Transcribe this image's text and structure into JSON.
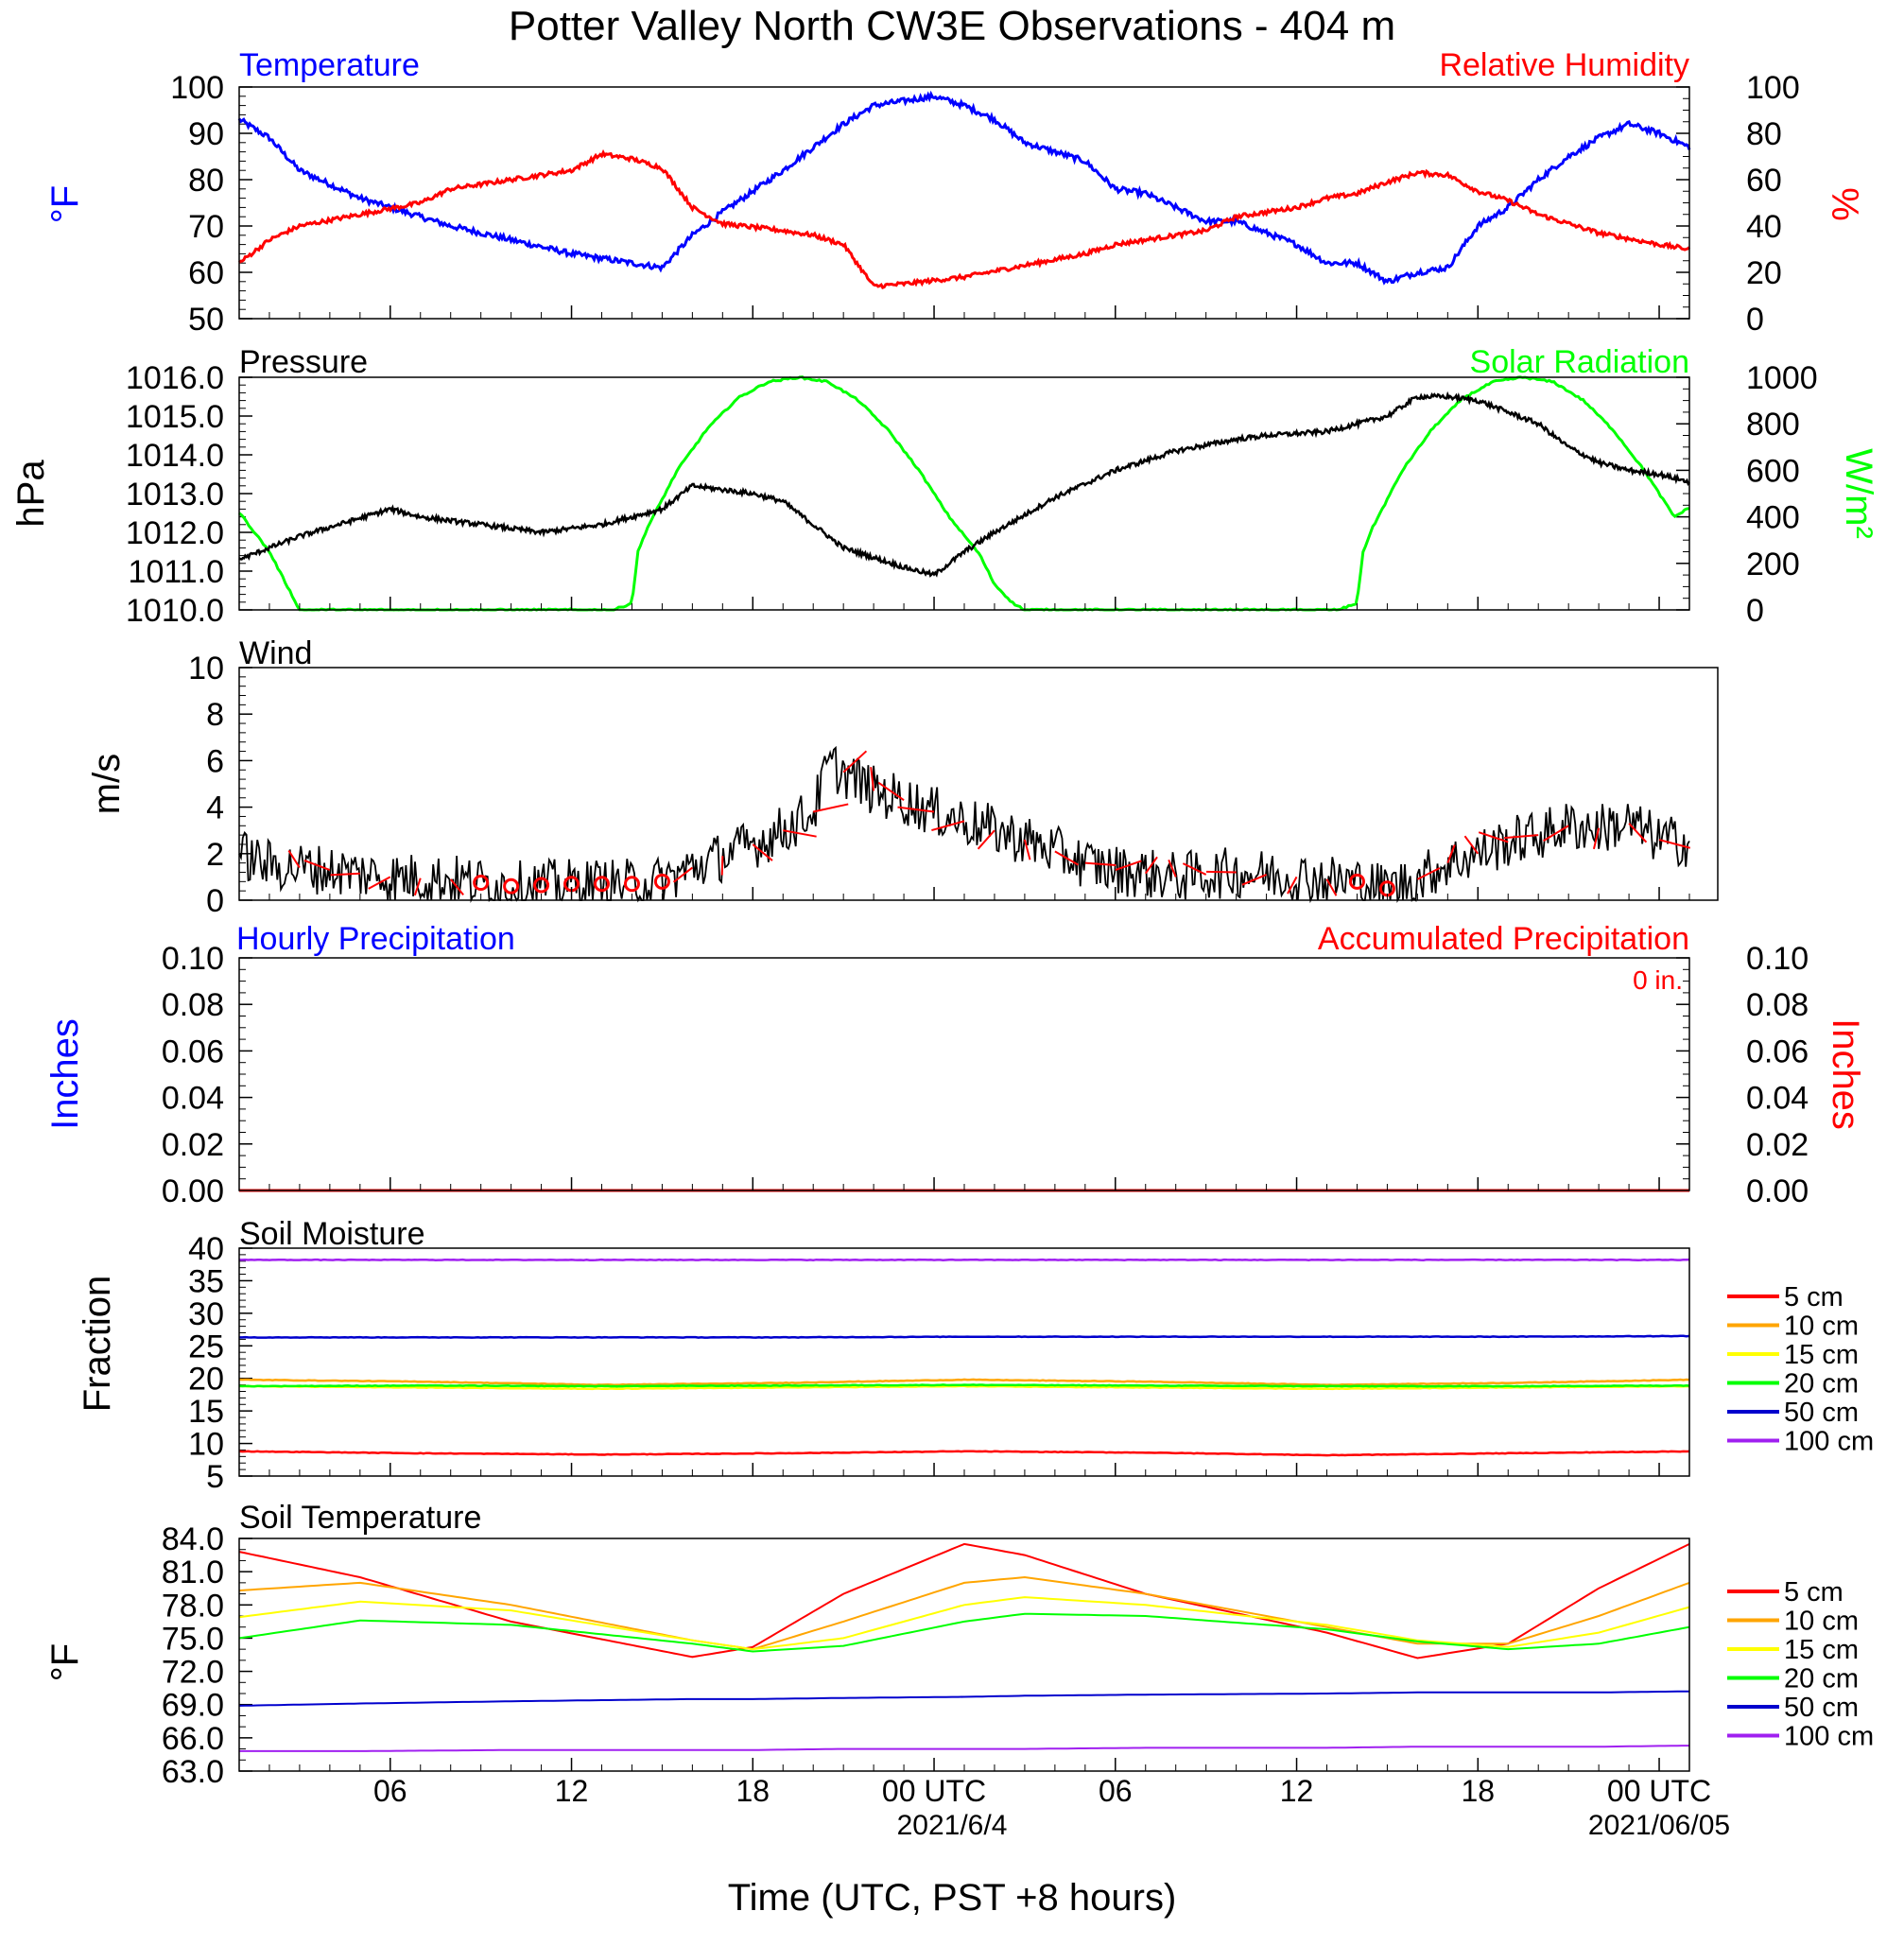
{
  "title": "Potter Valley North CW3E Observations - 404 m",
  "xlabel": "Time (UTC, PST +8 hours)",
  "x_ticks": [
    "06",
    "12",
    "18",
    "00 UTC",
    "06",
    "12",
    "18",
    "00 UTC"
  ],
  "x_dates": [
    "2021/6/4",
    "2021/06/05"
  ],
  "colors": {
    "temperature": "#0000ff",
    "humidity": "#ff0000",
    "pressure": "#000000",
    "solar": "#00ff00",
    "wind": "#000000",
    "barb": "#ff0000",
    "d5": "#ff0000",
    "d10": "#ffa500",
    "d15": "#ffff00",
    "d20": "#00ff00",
    "d50": "#0000cd",
    "d100": "#a020f0"
  },
  "panels": {
    "temp": {
      "left_title": "Temperature",
      "right_title": "Relative Humidity",
      "left_unit": "°F",
      "right_unit": "%",
      "left_ticks": [
        "100",
        "90",
        "80",
        "70",
        "60",
        "50"
      ],
      "right_ticks": [
        "100",
        "80",
        "60",
        "40",
        "20",
        "0"
      ]
    },
    "pressure": {
      "left_title": "Pressure",
      "right_title": "Solar Radiation",
      "left_unit": "hPa",
      "right_unit": "W/m²",
      "left_ticks": [
        "1016.0",
        "1015.0",
        "1014.0",
        "1013.0",
        "1012.0",
        "1011.0",
        "1010.0"
      ],
      "right_ticks": [
        "1000",
        "800",
        "600",
        "400",
        "200",
        "0"
      ]
    },
    "wind": {
      "left_title": "Wind",
      "left_unit": "m/s",
      "left_ticks": [
        "10",
        "8",
        "6",
        "4",
        "2",
        "0"
      ]
    },
    "precip": {
      "left_title": "Hourly Precipitation",
      "right_title": "Accumulated Precipitation",
      "annotation": "0 in.",
      "left_unit": "Inches",
      "right_unit": "Inches",
      "left_ticks": [
        "0.10",
        "0.08",
        "0.06",
        "0.04",
        "0.02",
        "0.00"
      ],
      "right_ticks": [
        "0.10",
        "0.08",
        "0.06",
        "0.04",
        "0.02",
        "0.00"
      ]
    },
    "soil_moisture": {
      "left_title": "Soil Moisture",
      "left_unit": "Fraction",
      "left_ticks": [
        "40",
        "35",
        "30",
        "25",
        "20",
        "15",
        "10",
        "5"
      ]
    },
    "soil_temp": {
      "left_title": "Soil Temperature",
      "left_unit": "°F",
      "left_ticks": [
        "84.0",
        "81.0",
        "78.0",
        "75.0",
        "72.0",
        "69.0",
        "66.0",
        "63.0"
      ]
    }
  },
  "legend": [
    "5 cm",
    "10 cm",
    "15 cm",
    "20 cm",
    "50 cm",
    "100 cm"
  ],
  "chart_data": {
    "type": "line",
    "x_hours_since": "2021-06-03 01:00 UTC",
    "x_range": [
      1,
      49
    ],
    "temperature_F": {
      "x": [
        1,
        2,
        3,
        5,
        7,
        8,
        10,
        12,
        14,
        15,
        16,
        17,
        19,
        21,
        22,
        23,
        24,
        25,
        26,
        27,
        29,
        30,
        31,
        33,
        34,
        36,
        37,
        38,
        39,
        40,
        41,
        42,
        43,
        44,
        45,
        46,
        47,
        48,
        49
      ],
      "values": [
        93,
        89,
        82,
        76,
        72,
        70,
        67,
        64,
        62,
        61,
        68,
        73,
        82,
        92,
        96,
        97,
        98,
        96,
        93,
        88,
        84,
        78,
        77,
        71,
        71,
        66,
        62,
        62,
        58,
        60,
        61,
        70,
        74,
        80,
        85,
        89,
        92,
        90,
        87
      ],
      "ylim": [
        50,
        100
      ]
    },
    "humidity_pct": {
      "x": [
        1,
        2,
        3,
        5,
        7,
        8,
        10,
        12,
        13,
        14,
        15,
        16,
        17,
        19,
        20,
        21,
        22,
        23,
        25,
        27,
        29,
        30,
        31,
        33,
        34,
        36,
        37,
        38,
        39,
        40,
        41,
        42,
        43,
        44,
        46,
        48,
        49
      ],
      "values": [
        24,
        34,
        40,
        45,
        50,
        56,
        60,
        64,
        71,
        69,
        65,
        48,
        41,
        38,
        36,
        32,
        14,
        15,
        18,
        23,
        28,
        32,
        34,
        38,
        44,
        48,
        52,
        54,
        59,
        63,
        62,
        55,
        51,
        45,
        37,
        32,
        30
      ],
      "ylim": [
        0,
        100
      ]
    },
    "pressure_hPa": {
      "x": [
        1,
        3,
        6,
        7,
        9,
        11,
        13,
        15,
        16,
        17,
        18,
        19,
        20,
        21,
        23,
        24,
        25,
        26,
        28,
        30,
        32,
        34,
        35,
        37,
        39,
        40,
        41,
        42,
        43,
        44,
        45,
        46,
        47,
        48,
        49
      ],
      "values": [
        1011.3,
        1011.9,
        1012.6,
        1012.4,
        1012.2,
        1012.0,
        1012.2,
        1012.6,
        1013.2,
        1013.1,
        1013.0,
        1012.8,
        1012.2,
        1011.6,
        1011.1,
        1010.9,
        1011.5,
        1012.0,
        1012.9,
        1013.6,
        1014.1,
        1014.4,
        1014.5,
        1014.6,
        1015.0,
        1015.5,
        1015.5,
        1015.4,
        1015.1,
        1014.8,
        1014.2,
        1013.8,
        1013.6,
        1013.5,
        1013.3
      ],
      "ylim": [
        1010,
        1016
      ]
    },
    "solar_W_m2": {
      "x": [
        1,
        2,
        2.6,
        3,
        4,
        13.4,
        14,
        14.2,
        14.5,
        15.5,
        16.5,
        17.5,
        18.5,
        19.5,
        20.5,
        21.5,
        22.5,
        23.5,
        24.5,
        25.5,
        26.0,
        26.6,
        27,
        37.4,
        38,
        38.2,
        38.5,
        39.5,
        40.5,
        41.5,
        42.5,
        43.5,
        44.5,
        45.5,
        46.5,
        47.5,
        48.5,
        49
      ],
      "values": [
        420,
        250,
        100,
        0,
        0,
        0,
        30,
        250,
        350,
        600,
        780,
        910,
        980,
        1000,
        980,
        900,
        770,
        600,
        400,
        240,
        110,
        30,
        0,
        0,
        30,
        250,
        350,
        600,
        780,
        910,
        980,
        1000,
        980,
        900,
        770,
        600,
        400,
        440
      ],
      "ylim": [
        0,
        1000
      ]
    },
    "wind_ms": {
      "x": [
        1,
        2,
        4,
        6,
        8,
        10,
        12,
        14,
        15,
        16,
        17,
        18,
        19,
        20,
        20.5,
        21,
        22,
        23,
        24,
        25,
        26,
        27,
        28,
        29,
        30,
        32,
        34,
        36,
        38,
        39,
        40,
        41,
        42,
        43,
        44,
        45,
        46,
        47,
        48,
        49
      ],
      "values": [
        2.0,
        1.5,
        1.3,
        1.0,
        0.9,
        0.6,
        0.7,
        0.7,
        0.8,
        1.4,
        1.9,
        2.4,
        3.0,
        3.8,
        5.8,
        5.5,
        4.7,
        4.3,
        3.8,
        3.4,
        3.0,
        2.6,
        2.1,
        1.6,
        1.3,
        1.0,
        1.2,
        1.0,
        0.8,
        0.5,
        0.9,
        1.6,
        2.0,
        2.5,
        2.8,
        3.2,
        3.1,
        3.3,
        2.6,
        2.5
      ],
      "ylim": [
        0,
        10
      ]
    },
    "precip_hourly_in": {
      "x": [
        1,
        49
      ],
      "values": [
        0.0,
        0.0
      ],
      "ylim": [
        0,
        0.1
      ]
    },
    "precip_accum_in": {
      "x": [
        1,
        49
      ],
      "values": [
        0.0,
        0.0
      ],
      "ylim": [
        0,
        0.1
      ]
    },
    "soil_moisture": {
      "ylim": [
        5,
        40
      ],
      "series": [
        {
          "name": "5 cm",
          "values": [
            8.8,
            8.5,
            8.3,
            8.5,
            8.8,
            8.6,
            8.2,
            8.5,
            8.8
          ]
        },
        {
          "name": "10 cm",
          "values": [
            19.8,
            19.5,
            19.0,
            19.3,
            19.8,
            19.5,
            19.0,
            19.3,
            19.8
          ]
        },
        {
          "name": "15 cm",
          "values": [
            18.8,
            18.6,
            18.4,
            18.6,
            18.8,
            18.6,
            18.4,
            18.6,
            18.8
          ]
        },
        {
          "name": "20 cm",
          "values": [
            18.8,
            18.9,
            18.8,
            18.9,
            19.0,
            18.9,
            18.8,
            18.8,
            18.9
          ]
        },
        {
          "name": "50 cm",
          "values": [
            26.3,
            26.3,
            26.3,
            26.3,
            26.4,
            26.4,
            26.4,
            26.4,
            26.5
          ]
        },
        {
          "name": "100 cm",
          "values": [
            38.2,
            38.2,
            38.2,
            38.2,
            38.2,
            38.2,
            38.2,
            38.2,
            38.2
          ]
        }
      ],
      "x": [
        1,
        7,
        13,
        19,
        25,
        31,
        37,
        43,
        49
      ]
    },
    "soil_temperature_F": {
      "ylim": [
        63,
        84
      ],
      "x": [
        1,
        5,
        10,
        16,
        18,
        21,
        25,
        27,
        31,
        37,
        40,
        43,
        46,
        49
      ],
      "series": [
        {
          "name": "5 cm",
          "values": [
            82.8,
            80.5,
            76.5,
            73.3,
            74.2,
            79.0,
            83.5,
            82.5,
            79.0,
            75.5,
            73.2,
            74.5,
            79.5,
            83.5
          ]
        },
        {
          "name": "10 cm",
          "values": [
            79.3,
            80.0,
            78.0,
            74.8,
            74.0,
            76.5,
            80.0,
            80.5,
            79.0,
            76.0,
            74.5,
            74.5,
            77.0,
            80.0
          ]
        },
        {
          "name": "15 cm",
          "values": [
            76.9,
            78.3,
            77.5,
            74.8,
            74.0,
            75.0,
            78.0,
            78.7,
            78.0,
            76.2,
            74.8,
            74.2,
            75.5,
            77.8
          ]
        },
        {
          "name": "20 cm",
          "values": [
            75.0,
            76.6,
            76.2,
            74.5,
            73.8,
            74.3,
            76.5,
            77.2,
            77.0,
            75.8,
            74.7,
            74.0,
            74.5,
            76.0
          ]
        },
        {
          "name": "50 cm",
          "values": [
            68.9,
            69.1,
            69.3,
            69.5,
            69.5,
            69.6,
            69.7,
            69.8,
            69.9,
            70.0,
            70.1,
            70.1,
            70.1,
            70.2
          ]
        },
        {
          "name": "100 cm",
          "values": [
            64.8,
            64.8,
            64.9,
            64.9,
            64.9,
            65.0,
            65.0,
            65.0,
            65.1,
            65.1,
            65.2,
            65.2,
            65.2,
            65.3
          ]
        }
      ]
    }
  }
}
